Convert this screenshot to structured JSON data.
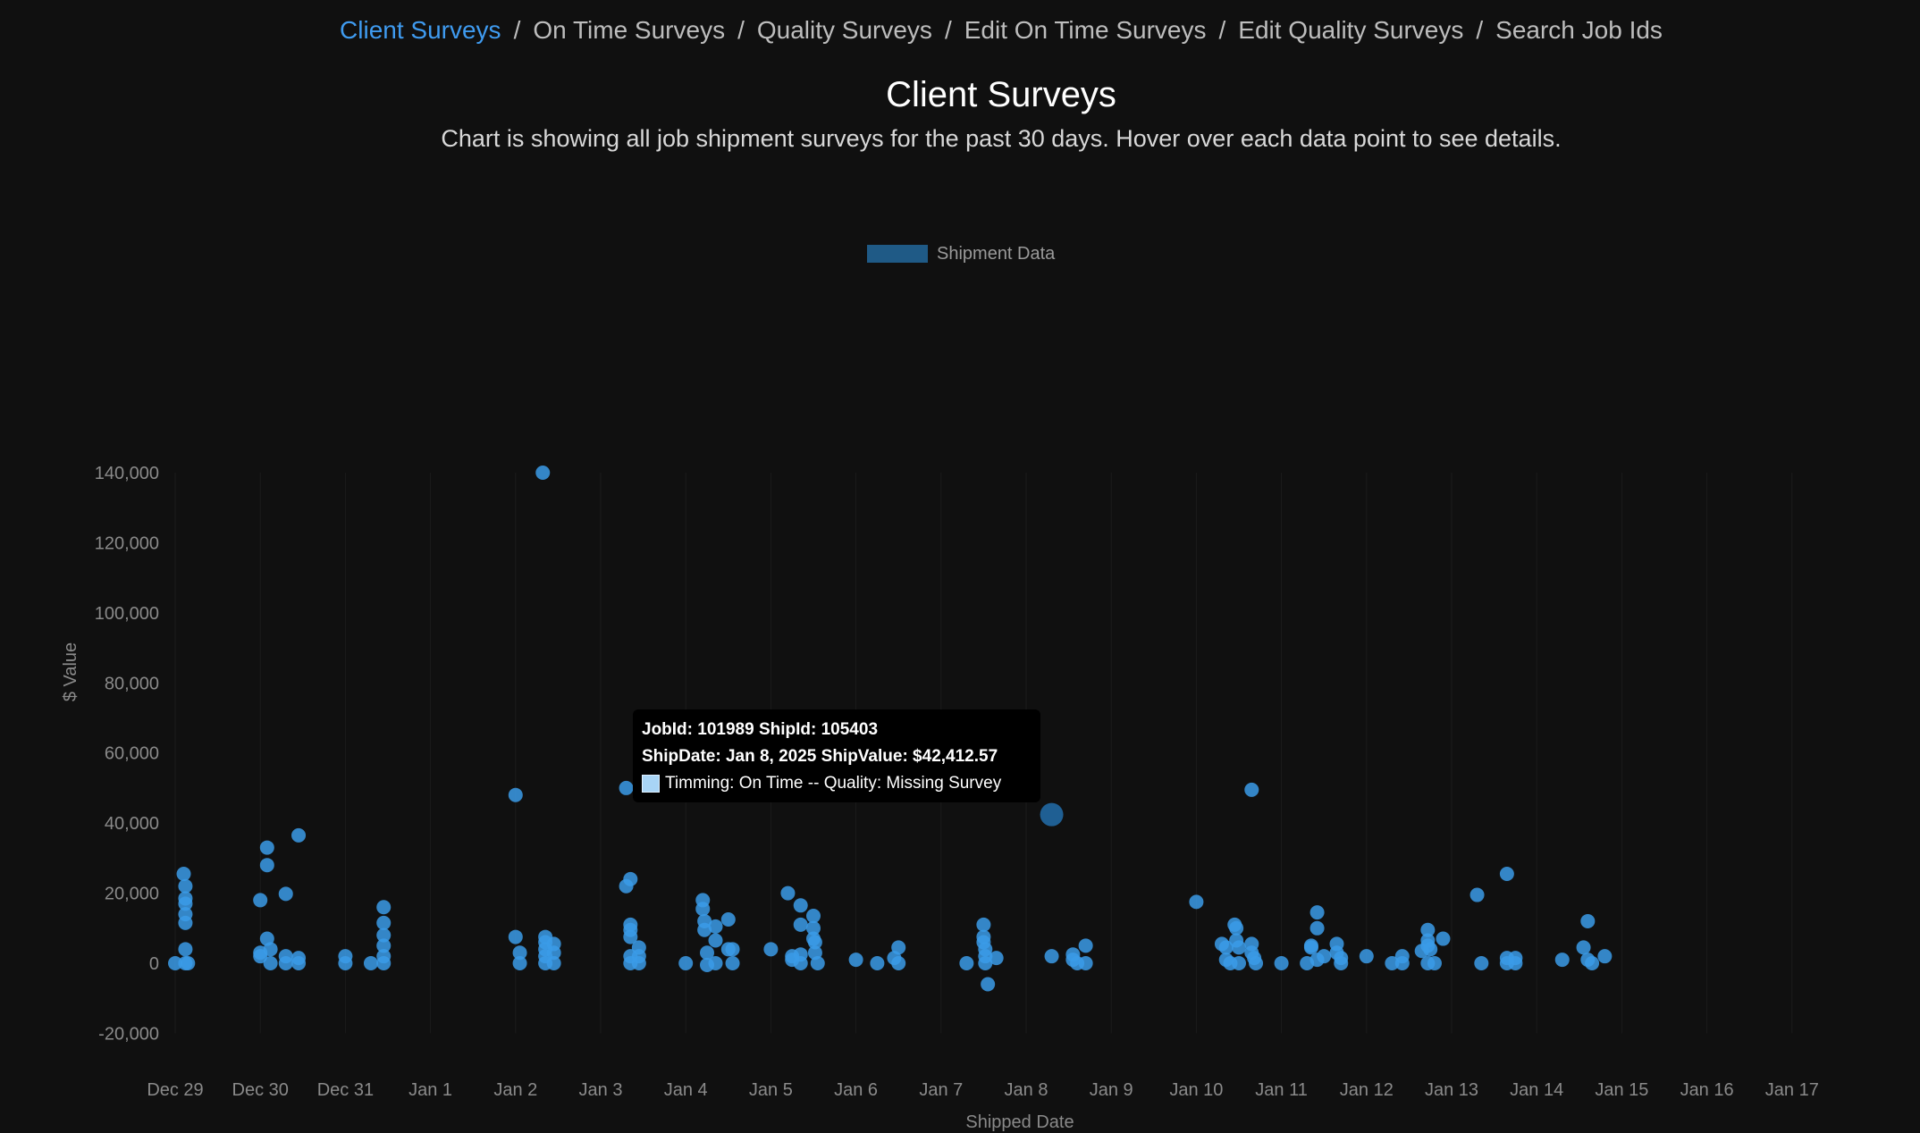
{
  "breadcrumb": [
    {
      "label": "Client Surveys",
      "active": true
    },
    {
      "label": "On Time Surveys",
      "active": false
    },
    {
      "label": "Quality Surveys",
      "active": false
    },
    {
      "label": "Edit On Time Surveys",
      "active": false
    },
    {
      "label": "Edit Quality Surveys",
      "active": false
    },
    {
      "label": "Search Job Ids",
      "active": false
    }
  ],
  "breadcrumb_separator": "/",
  "page": {
    "title": "Client Surveys",
    "subtitle": "Chart is showing all job shipment surveys for the past 30 days. Hover over each data point to see details."
  },
  "tooltip": {
    "title_line1": "JobId: 101989 ShipId: 105403",
    "title_line2": "ShipDate: Jan 8, 2025 ShipValue: $42,412.57",
    "body": "Timming: On Time -- Quality: Missing Survey"
  },
  "colors": {
    "point": "#3b9be8",
    "point_dim": "#2f7fc0",
    "legend_box": "#1f5a86",
    "grid": "#1c1c1c",
    "breadcrumb_active": "#3f9bf0"
  },
  "chart_data": {
    "type": "scatter",
    "title": "",
    "xlabel": "Shipped Date",
    "ylabel": "$ Value",
    "legend": {
      "position": "top-center",
      "entries": [
        "Shipment Data"
      ]
    },
    "grid": true,
    "ylim": [
      -20000,
      140000
    ],
    "y_ticks": [
      140000,
      120000,
      100000,
      80000,
      60000,
      40000,
      20000,
      0,
      -20000
    ],
    "y_tick_labels": [
      "140,000",
      "120,000",
      "100,000",
      "80,000",
      "60,000",
      "40,000",
      "20,000",
      "0",
      "-20,000"
    ],
    "x_ticks": [
      "Dec 29",
      "Dec 30",
      "Dec 31",
      "Jan 1",
      "Jan 2",
      "Jan 3",
      "Jan 4",
      "Jan 5",
      "Jan 6",
      "Jan 7",
      "Jan 8",
      "Jan 9",
      "Jan 10",
      "Jan 11",
      "Jan 12",
      "Jan 13",
      "Jan 14",
      "Jan 15",
      "Jan 16",
      "Jan 17"
    ],
    "highlighted_point": {
      "x": 10.3,
      "y": 42412.57
    },
    "series": [
      {
        "name": "Shipment Data",
        "points": [
          [
            0.0,
            0
          ],
          [
            0.1,
            25500
          ],
          [
            0.12,
            22000
          ],
          [
            0.12,
            18500
          ],
          [
            0.12,
            17000
          ],
          [
            0.12,
            14000
          ],
          [
            0.12,
            11500
          ],
          [
            0.12,
            4000
          ],
          [
            0.12,
            0
          ],
          [
            0.15,
            0
          ],
          [
            1.0,
            18000
          ],
          [
            1.0,
            3000
          ],
          [
            1.0,
            2000
          ],
          [
            1.08,
            33000
          ],
          [
            1.08,
            28000
          ],
          [
            1.08,
            7000
          ],
          [
            1.12,
            4000
          ],
          [
            1.12,
            0
          ],
          [
            1.3,
            19800
          ],
          [
            1.3,
            2000
          ],
          [
            1.3,
            0
          ],
          [
            1.45,
            36500
          ],
          [
            1.45,
            1500
          ],
          [
            1.45,
            0
          ],
          [
            2.0,
            2000
          ],
          [
            2.0,
            0
          ],
          [
            2.3,
            0
          ],
          [
            2.45,
            16000
          ],
          [
            2.45,
            11500
          ],
          [
            2.45,
            8000
          ],
          [
            2.45,
            5000
          ],
          [
            2.45,
            2000
          ],
          [
            2.45,
            0
          ],
          [
            4.0,
            48000
          ],
          [
            4.0,
            7500
          ],
          [
            4.05,
            3000
          ],
          [
            4.05,
            0
          ],
          [
            4.32,
            140000
          ],
          [
            4.35,
            7500
          ],
          [
            4.35,
            6000
          ],
          [
            4.35,
            4000
          ],
          [
            4.35,
            2000
          ],
          [
            4.35,
            0
          ],
          [
            4.45,
            5500
          ],
          [
            4.45,
            3000
          ],
          [
            4.45,
            0
          ],
          [
            5.3,
            50000
          ],
          [
            5.3,
            22000
          ],
          [
            5.35,
            24000
          ],
          [
            5.35,
            11000
          ],
          [
            5.35,
            9500
          ],
          [
            5.35,
            7500
          ],
          [
            5.35,
            2000
          ],
          [
            5.35,
            0
          ],
          [
            5.45,
            4500
          ],
          [
            5.45,
            2000
          ],
          [
            5.45,
            0
          ],
          [
            6.0,
            0
          ],
          [
            6.2,
            18000
          ],
          [
            6.2,
            15500
          ],
          [
            6.22,
            12000
          ],
          [
            6.22,
            9500
          ],
          [
            6.25,
            3000
          ],
          [
            6.25,
            -500
          ],
          [
            6.35,
            10500
          ],
          [
            6.35,
            6500
          ],
          [
            6.35,
            0
          ],
          [
            6.5,
            12500
          ],
          [
            6.5,
            4000
          ],
          [
            6.55,
            4000
          ],
          [
            6.55,
            0
          ],
          [
            7.0,
            4000
          ],
          [
            7.2,
            20000
          ],
          [
            7.25,
            2000
          ],
          [
            7.25,
            1000
          ],
          [
            7.35,
            16500
          ],
          [
            7.35,
            11000
          ],
          [
            7.35,
            2500
          ],
          [
            7.35,
            0
          ],
          [
            7.5,
            13500
          ],
          [
            7.5,
            10000
          ],
          [
            7.5,
            7000
          ],
          [
            7.52,
            6000
          ],
          [
            7.52,
            3000
          ],
          [
            7.55,
            0
          ],
          [
            8.0,
            1000
          ],
          [
            8.25,
            0
          ],
          [
            8.45,
            1500
          ],
          [
            8.5,
            4500
          ],
          [
            8.5,
            0
          ],
          [
            9.3,
            0
          ],
          [
            9.5,
            11000
          ],
          [
            9.5,
            7500
          ],
          [
            9.5,
            6000
          ],
          [
            9.52,
            4000
          ],
          [
            9.52,
            2000
          ],
          [
            9.52,
            0
          ],
          [
            9.55,
            -6000
          ],
          [
            9.65,
            1500
          ],
          [
            10.3,
            42412.57
          ],
          [
            10.3,
            2000
          ],
          [
            10.55,
            2500
          ],
          [
            10.55,
            1000
          ],
          [
            10.6,
            0
          ],
          [
            10.7,
            5000
          ],
          [
            10.7,
            0
          ],
          [
            12.0,
            17500
          ],
          [
            12.3,
            5500
          ],
          [
            12.35,
            4500
          ],
          [
            12.35,
            1000
          ],
          [
            12.4,
            0
          ],
          [
            12.45,
            11000
          ],
          [
            12.47,
            10000
          ],
          [
            12.47,
            6500
          ],
          [
            12.5,
            4500
          ],
          [
            12.5,
            0
          ],
          [
            12.65,
            49500
          ],
          [
            12.65,
            5500
          ],
          [
            12.65,
            3000
          ],
          [
            12.68,
            1500
          ],
          [
            12.7,
            0
          ],
          [
            13.0,
            0
          ],
          [
            13.3,
            0
          ],
          [
            13.35,
            5000
          ],
          [
            13.35,
            4500
          ],
          [
            13.42,
            14500
          ],
          [
            13.42,
            10000
          ],
          [
            13.42,
            1000
          ],
          [
            13.5,
            2000
          ],
          [
            13.65,
            5500
          ],
          [
            13.65,
            3000
          ],
          [
            13.7,
            1500
          ],
          [
            13.7,
            0
          ],
          [
            14.0,
            2000
          ],
          [
            14.3,
            0
          ],
          [
            14.42,
            2000
          ],
          [
            14.42,
            0
          ],
          [
            14.65,
            3500
          ],
          [
            14.72,
            9500
          ],
          [
            14.72,
            6500
          ],
          [
            14.72,
            5000
          ],
          [
            14.72,
            0
          ],
          [
            14.75,
            4000
          ],
          [
            14.8,
            0
          ],
          [
            14.9,
            7000
          ],
          [
            15.3,
            19500
          ],
          [
            15.35,
            0
          ],
          [
            15.65,
            25500
          ],
          [
            15.65,
            1500
          ],
          [
            15.65,
            0
          ],
          [
            15.75,
            1500
          ],
          [
            15.75,
            0
          ],
          [
            16.3,
            1000
          ],
          [
            16.55,
            4500
          ],
          [
            16.6,
            12000
          ],
          [
            16.6,
            1000
          ],
          [
            16.65,
            0
          ],
          [
            16.8,
            2000
          ]
        ]
      }
    ]
  }
}
